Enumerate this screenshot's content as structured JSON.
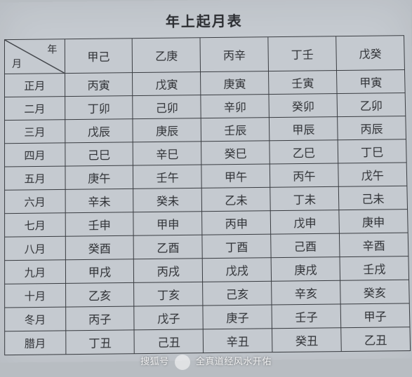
{
  "title": "年上起月表",
  "header": {
    "diag_top": "年",
    "diag_bot": "月",
    "year_stems": [
      "甲己",
      "乙庚",
      "丙辛",
      "丁壬",
      "戊癸"
    ]
  },
  "rows": [
    {
      "month": "正月",
      "cells": [
        "丙寅",
        "戊寅",
        "庚寅",
        "壬寅",
        "甲寅"
      ]
    },
    {
      "month": "二月",
      "cells": [
        "丁卯",
        "己卯",
        "辛卯",
        "癸卯",
        "乙卯"
      ]
    },
    {
      "month": "三月",
      "cells": [
        "戊辰",
        "庚辰",
        "壬辰",
        "甲辰",
        "丙辰"
      ]
    },
    {
      "month": "四月",
      "cells": [
        "己巳",
        "辛巳",
        "癸巳",
        "乙巳",
        "丁巳"
      ]
    },
    {
      "month": "五月",
      "cells": [
        "庚午",
        "壬午",
        "甲午",
        "丙午",
        "戊午"
      ]
    },
    {
      "month": "六月",
      "cells": [
        "辛未",
        "癸未",
        "乙未",
        "丁未",
        "己未"
      ]
    },
    {
      "month": "七月",
      "cells": [
        "壬申",
        "甲申",
        "丙申",
        "戊申",
        "庚申"
      ]
    },
    {
      "month": "八月",
      "cells": [
        "癸酉",
        "乙酉",
        "丁酉",
        "己酉",
        "辛酉"
      ]
    },
    {
      "month": "九月",
      "cells": [
        "甲戌",
        "丙戌",
        "戊戌",
        "庚戌",
        "壬戌"
      ]
    },
    {
      "month": "十月",
      "cells": [
        "乙亥",
        "丁亥",
        "己亥",
        "辛亥",
        "癸亥"
      ]
    },
    {
      "month": "冬月",
      "cells": [
        "丙子",
        "戊子",
        "庚子",
        "壬子",
        "甲子"
      ]
    },
    {
      "month": "腊月",
      "cells": [
        "丁丑",
        "己丑",
        "辛丑",
        "癸丑",
        "乙丑"
      ]
    }
  ],
  "watermark": {
    "left": "搜狐号",
    "right": "全真道经风水开佑"
  },
  "style": {
    "bg": "#c5cad0",
    "border": "#3a3d42",
    "text": "#2e3034",
    "col_width_first": "15%",
    "col_width_rest": "17%"
  }
}
